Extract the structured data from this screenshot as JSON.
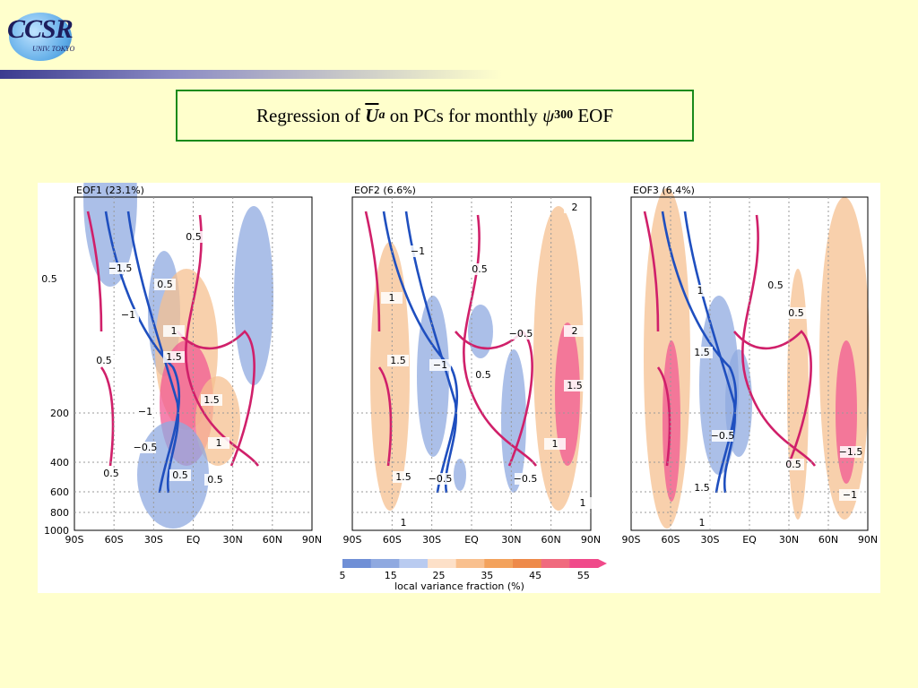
{
  "logo": {
    "text": "CCSR",
    "sub": "UNIV. TOKYO"
  },
  "title": {
    "prefix": "Regression of ",
    "symbol": "U",
    "symbol_sub": "a",
    "middle": " on PCs for monthly ",
    "psi": "ψ",
    "psi_sub": "300",
    "suffix": " EOF"
  },
  "colors": {
    "positive_contour": "#d0206a",
    "negative_contour": "#1f4fbf",
    "shade_low": "#8fa9e0",
    "shade_high": "#f04a8a"
  },
  "chart_data": [
    {
      "type": "heatmap",
      "title": "EOF1 (23.1%)",
      "x_ticks": [
        "90S",
        "60S",
        "30S",
        "EQ",
        "30N",
        "60N",
        "90N"
      ],
      "y_ticks": [
        "200",
        "400",
        "600",
        "800",
        "1000"
      ],
      "contour_labels": [
        "0.5",
        "0.5",
        "-1.5",
        "0.5",
        "-1",
        "1",
        "0.5",
        "1.5",
        "-1",
        "1.5",
        "-0.5",
        "1",
        "0.5",
        "0.5",
        "0.5"
      ]
    },
    {
      "type": "heatmap",
      "title": "EOF2 (6.6%)",
      "x_ticks": [
        "90S",
        "60S",
        "30S",
        "EQ",
        "30N",
        "60N",
        "90N"
      ],
      "contour_labels": [
        "-1",
        "2",
        "0.5",
        "1",
        "-0.5",
        "2",
        "1.5",
        "-1",
        "0.5",
        "1.5",
        "1",
        "1.5",
        "-0.5",
        "-0.5",
        "1",
        "1"
      ]
    },
    {
      "type": "heatmap",
      "title": "EOF3 (6.4%)",
      "x_ticks": [
        "90S",
        "60S",
        "30S",
        "EQ",
        "30N",
        "60N",
        "90N"
      ],
      "contour_labels": [
        "1",
        "0.5",
        "0.5",
        "1.5",
        "-0.5",
        "-1.5",
        "0.5",
        "1.5",
        "-1",
        "1"
      ]
    }
  ],
  "colorbar": {
    "ticks": [
      "5",
      "15",
      "25",
      "35",
      "45",
      "55"
    ],
    "label": "local variance fraction (%)"
  }
}
